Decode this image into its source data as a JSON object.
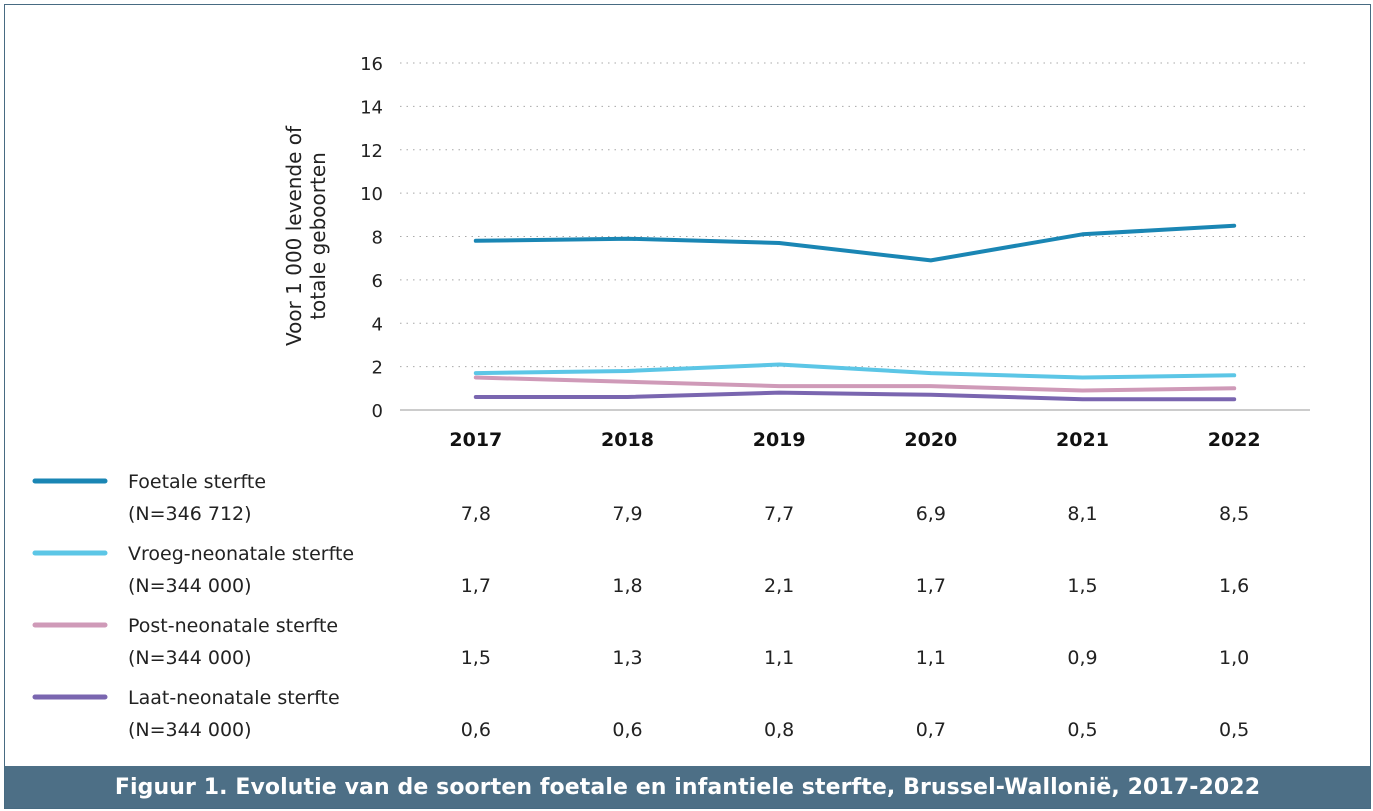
{
  "chart_data": {
    "type": "line",
    "caption": "Figuur 1. Evolutie van de soorten foetale en infantiele sterfte, Brussel-Wallonië, 2017-2022",
    "ylabel": [
      "Voor 1 000 levende of",
      "totale geboorten"
    ],
    "xlabel": "",
    "categories": [
      "2017",
      "2018",
      "2019",
      "2020",
      "2021",
      "2022"
    ],
    "ylim": [
      0,
      16
    ],
    "yticks": [
      "0",
      "2",
      "4",
      "6",
      "8",
      "10",
      "12",
      "14",
      "16"
    ],
    "grid": true,
    "series": [
      {
        "name": "Foetale sterfte",
        "n_label": "(N=346 712)",
        "color": "#1a86b4",
        "values": [
          7.8,
          7.9,
          7.7,
          6.9,
          8.1,
          8.5
        ],
        "labels": [
          "7,8",
          "7,9",
          "7,7",
          "6,9",
          "8,1",
          "8,5"
        ]
      },
      {
        "name": "Vroeg-neonatale sterfte",
        "n_label": "(N=344 000)",
        "color": "#5cc6e6",
        "values": [
          1.7,
          1.8,
          2.1,
          1.7,
          1.5,
          1.6
        ],
        "labels": [
          "1,7",
          "1,8",
          "2,1",
          "1,7",
          "1,5",
          "1,6"
        ]
      },
      {
        "name": "Post-neonatale sterfte",
        "n_label": "(N=344 000)",
        "color": "#cf9ab8",
        "values": [
          1.5,
          1.3,
          1.1,
          1.1,
          0.9,
          1.0
        ],
        "labels": [
          "1,5",
          "1,3",
          "1,1",
          "1,1",
          "0,9",
          "1,0"
        ]
      },
      {
        "name": "Laat-neonatale sterfte",
        "n_label": "(N=344 000)",
        "color": "#7a66b0",
        "values": [
          0.6,
          0.6,
          0.8,
          0.7,
          0.5,
          0.5
        ],
        "labels": [
          "0,6",
          "0,6",
          "0,8",
          "0,7",
          "0,5",
          "0,5"
        ]
      }
    ]
  }
}
